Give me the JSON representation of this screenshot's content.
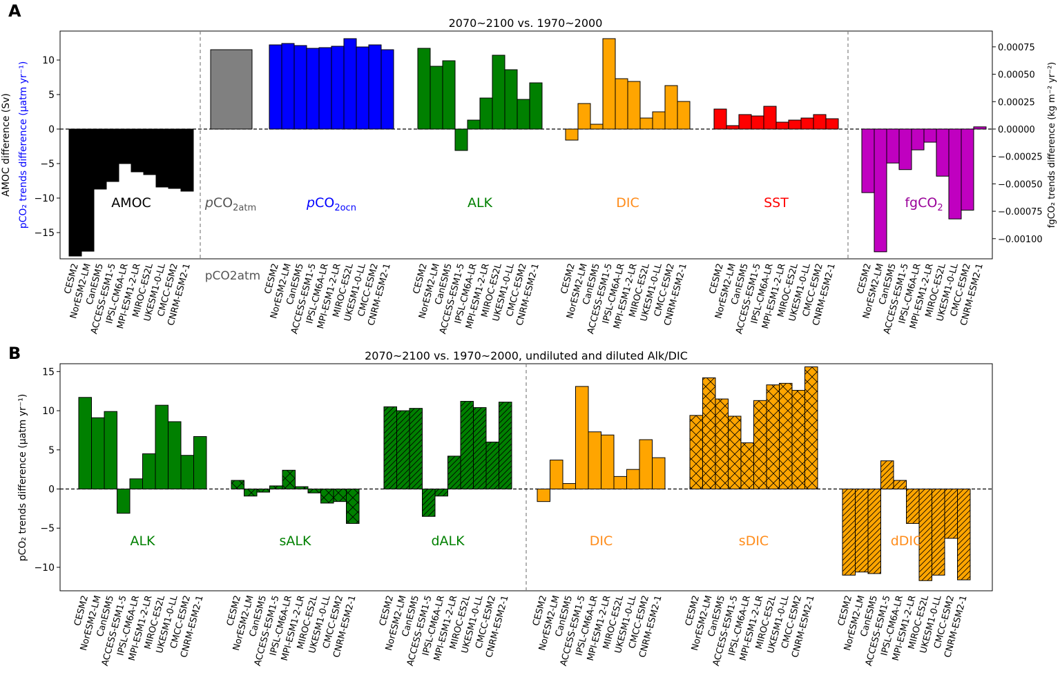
{
  "chart_data": [
    {
      "type": "bar",
      "panel_label": "A",
      "title": "2070~2100 vs. 1970~2000",
      "ylabel_left_line1": "AMOC difference (Sv)",
      "ylabel_left_line2": "pCO₂ trends difference (μatm yr⁻¹)",
      "ylabel_right": "fgCO₂ trends difference (kg m⁻² yr⁻²)",
      "ylim_left": [
        -18.8,
        14.2
      ],
      "yticks_left": [
        -15,
        -10,
        -5,
        0,
        5,
        10
      ],
      "ylim_right": [
        -0.001184,
        0.000894
      ],
      "yticks_right": [
        -0.001,
        -0.00075,
        -0.0005,
        -0.00025,
        0.0,
        0.00025,
        0.0005,
        0.00075
      ],
      "yticklabels_right": [
        "−0.00100",
        "−0.00075",
        "−0.00050",
        "−0.00025",
        "0.00000",
        "0.00025",
        "0.00050",
        "0.00075"
      ],
      "models": [
        "CESM2",
        "NorESM2-LM",
        "CanESM5",
        "ACCESS-ESM1-5",
        "IPSL-CM6A-LR",
        "MPI-ESM1-2-LR",
        "MIROC-ES2L",
        "UKESM1-0-LL",
        "CMCC-ESM2",
        "CNRM-ESM2-1"
      ],
      "series": [
        {
          "name": "AMOC",
          "color": "#000000",
          "label_color": "#000000",
          "axis": "left",
          "values": [
            -18.4,
            -17.7,
            -8.7,
            -7.6,
            -5.0,
            -6.2,
            -6.6,
            -8.4,
            -8.6,
            -9.0
          ]
        },
        {
          "name": "pCO₂atm",
          "label_display": "pCO2atm",
          "color": "#808080",
          "label_color": "#555555",
          "axis": "left",
          "single": true,
          "values": [
            11.5
          ]
        },
        {
          "name": "pCO₂ocn",
          "label_display": "pCO2ocn",
          "color": "#0000ff",
          "label_color": "#0000ff",
          "axis": "left",
          "values": [
            12.2,
            12.4,
            12.1,
            11.7,
            11.8,
            12.0,
            13.1,
            11.9,
            12.2,
            11.5
          ]
        },
        {
          "name": "ALK",
          "color": "#008000",
          "label_color": "#008000",
          "axis": "left",
          "values": [
            11.7,
            9.1,
            9.9,
            -3.1,
            1.3,
            4.5,
            10.7,
            8.6,
            4.3,
            6.7
          ]
        },
        {
          "name": "DIC",
          "color": "#ffa500",
          "label_color": "#ff8c1a",
          "axis": "left",
          "values": [
            -1.6,
            3.7,
            0.7,
            13.1,
            7.3,
            6.9,
            1.6,
            2.5,
            6.3,
            4.0
          ]
        },
        {
          "name": "SST",
          "color": "#ff0000",
          "label_color": "#ff0000",
          "axis": "left",
          "values": [
            2.9,
            0.5,
            2.1,
            1.9,
            3.3,
            1.0,
            1.3,
            1.6,
            2.1,
            1.5
          ]
        },
        {
          "name": "fgCO₂",
          "label_display": "fgCO2",
          "color": "#c000c0",
          "label_color": "#990099",
          "axis": "right",
          "values": [
            -0.00058,
            -0.00112,
            -0.00031,
            -0.00037,
            -0.00019,
            -0.00012,
            -0.00043,
            -0.00082,
            -0.00074,
            2e-05
          ]
        }
      ],
      "xlabel_single": "pCO2atm"
    },
    {
      "type": "bar",
      "panel_label": "B",
      "title": "2070~2100 vs. 1970~2000, undiluted and diluted Alk/DIC",
      "ylabel": "pCO₂ trends difference (μatm yr⁻¹)",
      "ylim": [
        -13.0,
        16.0
      ],
      "yticks": [
        -10,
        -5,
        0,
        5,
        10,
        15
      ],
      "models": [
        "CESM2",
        "NorESM2-LM",
        "CanESM5",
        "ACCESS-ESM1-5",
        "IPSL-CM6A-LR",
        "MPI-ESM1-2-LR",
        "MIROC-ES2L",
        "UKESM1-0-LL",
        "CMCC-ESM2",
        "CNRM-ESM2-1"
      ],
      "series": [
        {
          "name": "ALK",
          "color": "#008000",
          "label_color": "#008000",
          "hatch": "none",
          "values": [
            11.7,
            9.1,
            9.9,
            -3.1,
            1.3,
            4.5,
            10.7,
            8.6,
            4.3,
            6.7
          ]
        },
        {
          "name": "sALK",
          "color": "#008000",
          "label_color": "#008000",
          "hatch": "cross",
          "values": [
            1.1,
            -0.9,
            -0.4,
            0.4,
            2.4,
            0.3,
            -0.5,
            -1.8,
            -1.6,
            -4.4
          ]
        },
        {
          "name": "dALK",
          "color": "#008000",
          "label_color": "#008000",
          "hatch": "diagonal",
          "values": [
            10.5,
            10.0,
            10.3,
            -3.5,
            -0.9,
            4.2,
            11.2,
            10.4,
            6.0,
            11.1
          ]
        },
        {
          "name": "DIC",
          "color": "#ffa500",
          "label_color": "#ff8c1a",
          "hatch": "none",
          "values": [
            -1.6,
            3.7,
            0.7,
            13.1,
            7.3,
            6.9,
            1.6,
            2.5,
            6.3,
            4.0
          ]
        },
        {
          "name": "sDIC",
          "color": "#ffa500",
          "label_color": "#ff8c1a",
          "hatch": "cross",
          "values": [
            9.4,
            14.2,
            11.5,
            9.3,
            5.9,
            11.3,
            13.3,
            13.5,
            12.6,
            15.6
          ]
        },
        {
          "name": "dDIC",
          "color": "#ffa500",
          "label_color": "#ff8c1a",
          "hatch": "diagonal",
          "values": [
            -11.0,
            -10.6,
            -10.8,
            3.6,
            1.1,
            -4.4,
            -11.7,
            -11.0,
            -6.3,
            -11.6
          ]
        }
      ]
    }
  ]
}
